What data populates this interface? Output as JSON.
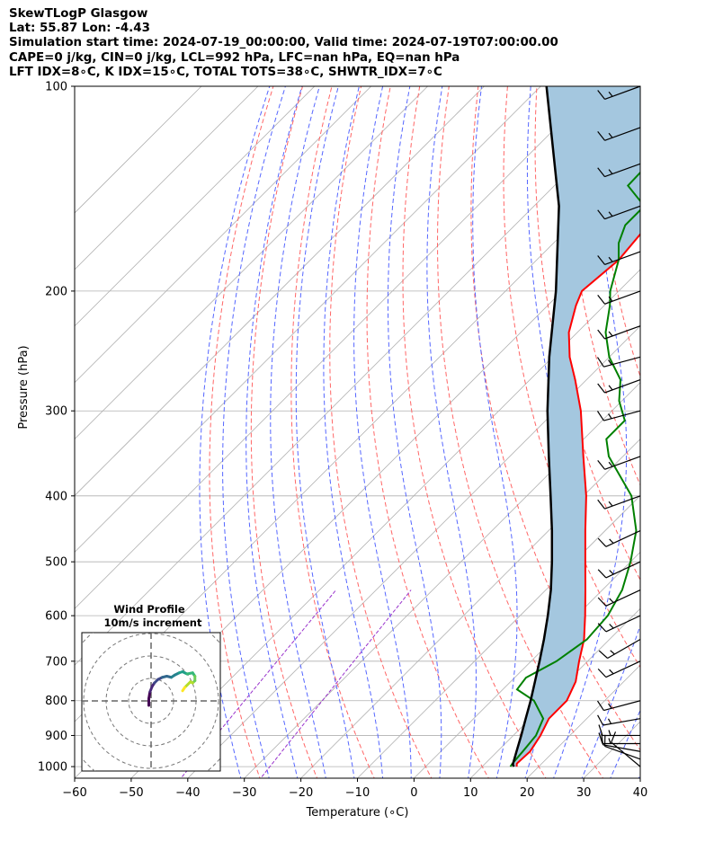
{
  "header": {
    "line1": "SkewTLogP Glasgow",
    "line2": "Lat: 55.87   Lon: -4.43",
    "line3": "Simulation start time: 2024-07-19_00:00:00, Valid time: 2024-07-19T07:00:00.00",
    "line4": "CAPE=0 j/kg, CIN=0 j/kg, LCL=992 hPa, LFC=nan hPa, EQ=nan hPa",
    "line5": "LFT IDX=8∘C, K IDX=15∘C, TOTAL TOTS=38∘C, SHWTR_IDX=7∘C"
  },
  "colors": {
    "temperature": "#ff0000",
    "dewpoint": "#008000",
    "parcel": "#000000",
    "shade": "#a4c7df",
    "dry_adiabat": "#ff6666",
    "moist_adiabat": "#5566ff",
    "mixing_ratio": "#9933cc",
    "isotherm": "#b0b0b0"
  },
  "chart_data": [
    {
      "type": "line",
      "title": "",
      "xlabel": "Temperature (∘C)",
      "ylabel": "Pressure (hPa)",
      "xlim": [
        -60,
        40
      ],
      "ylim": [
        1040,
        100
      ],
      "y_scale": "log",
      "x_ticks": [
        "−60",
        "−50",
        "−40",
        "−30",
        "−20",
        "−10",
        "0",
        "10",
        "20",
        "30",
        "40"
      ],
      "y_ticks": [
        "100",
        "200",
        "300",
        "400",
        "500",
        "600",
        "700",
        "800",
        "900",
        "1000"
      ],
      "grid": true,
      "skew": true,
      "series": [
        {
          "key": "temperature",
          "pressure": [
            1000,
            990,
            950,
            900,
            850,
            800,
            750,
            700,
            650,
            600,
            550,
            500,
            450,
            400,
            350,
            300,
            270,
            250,
            230,
            210,
            200,
            180,
            160,
            150,
            140,
            130,
            120,
            110,
            100
          ],
          "values": [
            16.1,
            15.6,
            15.8,
            14.8,
            13.3,
            13.3,
            11.5,
            8.5,
            5.5,
            1.5,
            -3.0,
            -8.0,
            -13.5,
            -19.5,
            -27.0,
            -35.5,
            -42.0,
            -47.0,
            -51.5,
            -55.0,
            -56.5,
            -55.5,
            -56.5,
            -55.0,
            -52.5,
            -51.0,
            -46.5,
            -44.0,
            -42.0
          ]
        },
        {
          "key": "dewpoint",
          "pressure": [
            1000,
            990,
            950,
            900,
            850,
            800,
            770,
            740,
            700,
            650,
            600,
            550,
            500,
            450,
            400,
            350,
            330,
            310,
            290,
            270,
            250,
            230,
            210,
            200,
            180,
            170,
            160,
            150,
            140,
            100
          ],
          "values": [
            15.0,
            14.8,
            14.5,
            14.0,
            12.3,
            7.5,
            2.5,
            2.0,
            4.5,
            6.0,
            5.5,
            3.5,
            0.0,
            -4.5,
            -11.5,
            -22.5,
            -26.0,
            -26.0,
            -30.5,
            -34.0,
            -40.0,
            -45.0,
            -49.0,
            -51.5,
            -55.5,
            -58.5,
            -60.5,
            -60.5,
            -67.0,
            -68.0
          ]
        },
        {
          "key": "parcel",
          "pressure": [
            1000,
            992,
            950,
            900,
            850,
            800,
            750,
            700,
            650,
            600,
            550,
            500,
            450,
            400,
            350,
            300,
            250,
            200,
            150,
            100
          ],
          "values": [
            15.6,
            15.0,
            13.4,
            11.4,
            9.2,
            6.9,
            4.3,
            1.5,
            -1.6,
            -5.1,
            -9.1,
            -13.9,
            -19.4,
            -25.8,
            -33.1,
            -41.4,
            -50.6,
            -61.1,
            -75.6,
            -99.0
          ]
        }
      ]
    },
    {
      "type": "line",
      "title": "Wind Profile",
      "subtitle": "10m/s increment",
      "note": "hodograph",
      "u": [
        -1.0,
        -1.0,
        -0.5,
        0.5,
        1.5,
        3.0,
        5.0,
        7.0,
        9.0,
        10.5,
        12.5,
        14.0,
        16.0,
        18.5,
        19.5,
        19.5,
        18.5,
        17.5,
        15.0,
        14.0
      ],
      "v": [
        -2.0,
        1.0,
        4.0,
        6.5,
        8.0,
        9.5,
        10.5,
        11.0,
        10.5,
        11.5,
        12.5,
        13.0,
        12.0,
        12.5,
        11.0,
        9.0,
        8.0,
        8.5,
        6.0,
        4.5
      ]
    }
  ],
  "wind_barbs": {
    "pressure": [
      1000,
      975,
      950,
      925,
      900,
      850,
      800,
      700,
      650,
      600,
      550,
      500,
      450,
      400,
      350,
      300,
      270,
      250,
      225,
      200,
      175,
      150,
      130,
      115,
      100
    ],
    "speed_kt": [
      10,
      10,
      10,
      15,
      15,
      15,
      15,
      15,
      15,
      15,
      15,
      15,
      15,
      15,
      15,
      15,
      15,
      15,
      15,
      15,
      15,
      15,
      15,
      15,
      15
    ],
    "direction_deg": [
      310,
      290,
      280,
      270,
      270,
      260,
      255,
      245,
      240,
      245,
      245,
      245,
      245,
      250,
      250,
      255,
      250,
      255,
      250,
      250,
      250,
      250,
      250,
      250,
      250
    ]
  }
}
